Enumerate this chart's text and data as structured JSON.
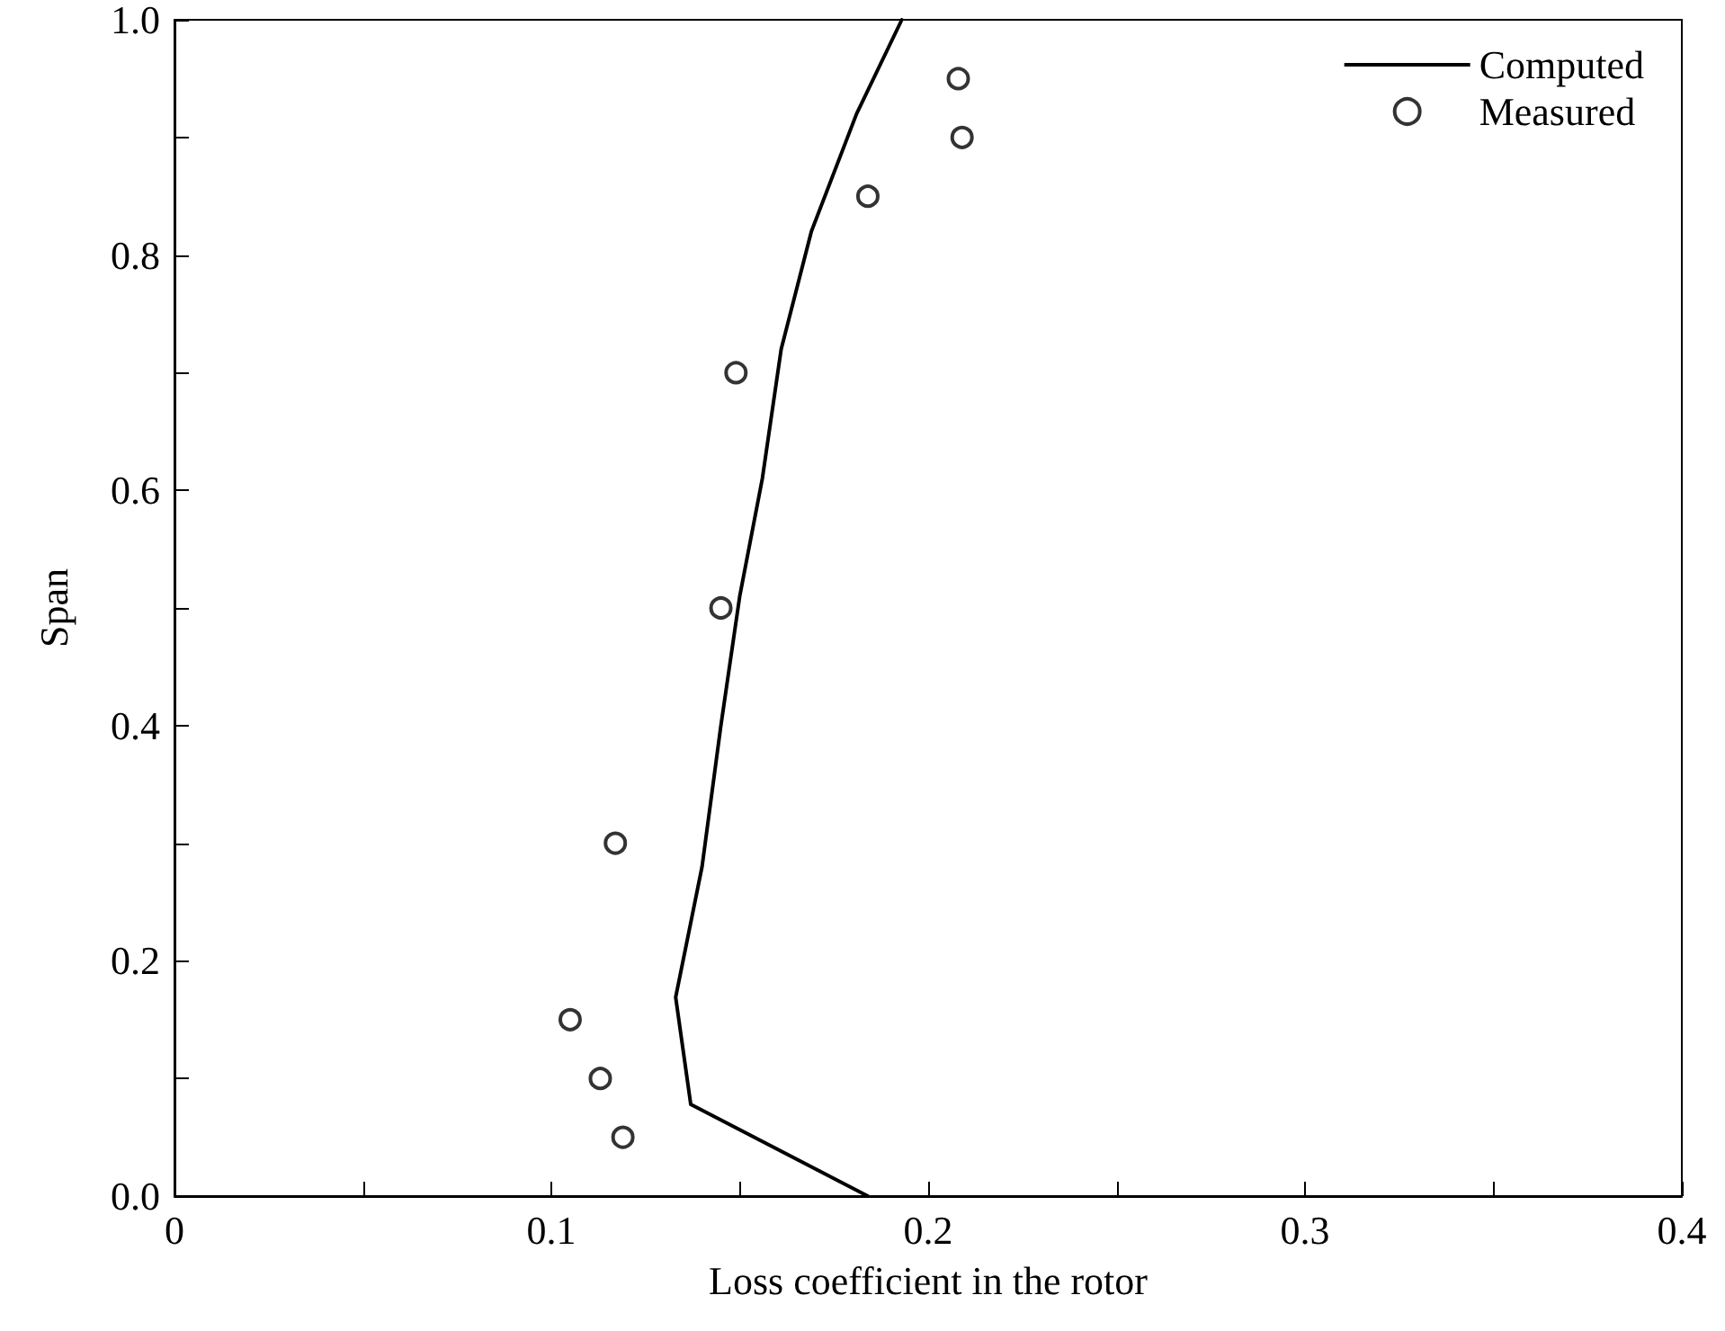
{
  "chart_data": {
    "type": "line",
    "xlabel": "Loss coefficient in the rotor",
    "ylabel": "Span",
    "xlim": [
      0,
      0.4
    ],
    "ylim": [
      0,
      1
    ],
    "xticks": [
      0,
      {
        "value": 0.05,
        "label": null
      },
      {
        "value": 0.1,
        "label": "0.1"
      },
      {
        "value": 0.15,
        "label": null
      },
      {
        "value": 0.2,
        "label": "0.2"
      },
      {
        "value": 0.25,
        "label": null
      },
      {
        "value": 0.3,
        "label": "0.3"
      },
      {
        "value": 0.35,
        "label": null
      },
      {
        "value": 0.4,
        "label": "0.4"
      }
    ],
    "yticks": [
      {
        "value": 0,
        "label": "0.0"
      },
      {
        "value": 0.1,
        "label": null
      },
      {
        "value": 0.2,
        "label": "0.2"
      },
      {
        "value": 0.3,
        "label": null
      },
      {
        "value": 0.4,
        "label": "0.4"
      },
      {
        "value": 0.5,
        "label": null
      },
      {
        "value": 0.6,
        "label": "0.6"
      },
      {
        "value": 0.7,
        "label": null
      },
      {
        "value": 0.8,
        "label": "0.8"
      },
      {
        "value": 0.9,
        "label": null
      },
      {
        "value": 1,
        "label": "1.0"
      }
    ],
    "grid": false,
    "legend": "top right",
    "series": [
      {
        "name": "Computed",
        "color": "#000000",
        "line_style": "solid",
        "x": [
          0.184,
          0.137,
          0.133,
          0.14,
          0.145,
          0.15,
          0.156,
          0.161,
          0.169,
          0.181,
          0.193
        ],
        "values": [
          0,
          0.078,
          0.169,
          0.28,
          0.4,
          0.51,
          0.61,
          0.72,
          0.82,
          0.92,
          1.0
        ]
      },
      {
        "name": "Measured",
        "type": "scatter",
        "color": "#000000",
        "marker": "circle",
        "x": [
          0.119,
          0.113,
          0.105,
          0.117,
          0.145,
          0.149,
          0.184,
          0.209,
          0.208
        ],
        "values": [
          0.05,
          0.1,
          0.15,
          0.3,
          0.5,
          0.7,
          0.85,
          0.9,
          0.95
        ]
      }
    ]
  }
}
